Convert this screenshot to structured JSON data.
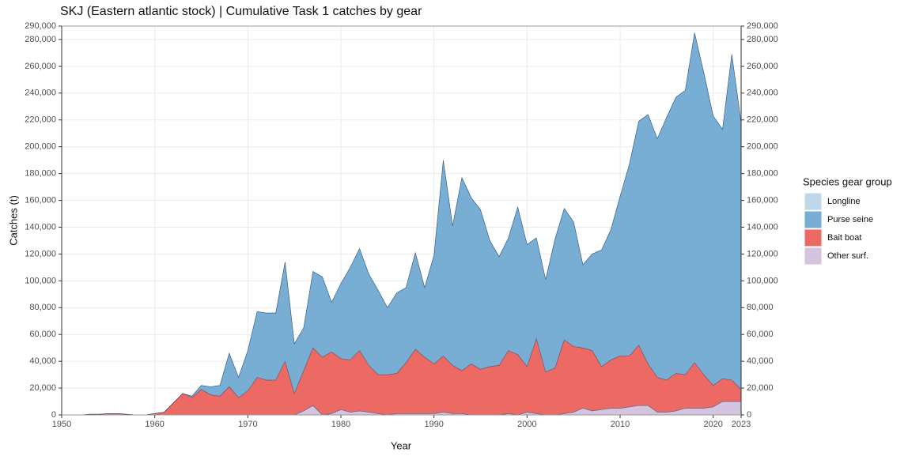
{
  "chart_data": {
    "type": "stacked_area",
    "title": "SKJ (Eastern atlantic stock) | Cumulative Task 1 catches by gear",
    "x_label": "Year",
    "y_label": "Catches (t)",
    "legend_title": "Species gear group",
    "x": [
      1950,
      1951,
      1952,
      1953,
      1954,
      1955,
      1956,
      1957,
      1958,
      1959,
      1960,
      1961,
      1962,
      1963,
      1964,
      1965,
      1966,
      1967,
      1968,
      1969,
      1970,
      1971,
      1972,
      1973,
      1974,
      1975,
      1976,
      1977,
      1978,
      1979,
      1980,
      1981,
      1982,
      1983,
      1984,
      1985,
      1986,
      1987,
      1988,
      1989,
      1990,
      1991,
      1992,
      1993,
      1994,
      1995,
      1996,
      1997,
      1998,
      1999,
      2000,
      2001,
      2002,
      2003,
      2004,
      2005,
      2006,
      2007,
      2008,
      2009,
      2010,
      2011,
      2012,
      2013,
      2014,
      2015,
      2016,
      2017,
      2018,
      2019,
      2020,
      2021,
      2022,
      2023
    ],
    "series": [
      {
        "name": "Longline",
        "color": "#bcd8ea",
        "values": [
          0,
          0,
          0,
          0,
          0,
          0,
          0,
          0,
          0,
          0,
          0,
          0,
          0,
          0,
          0,
          0,
          0,
          0,
          0,
          0,
          0,
          0,
          0,
          0,
          0,
          0,
          0,
          0,
          0,
          0,
          0,
          0,
          0,
          0,
          0,
          0,
          0,
          0,
          0,
          0,
          0,
          0,
          0,
          0,
          0,
          0,
          0,
          0,
          0,
          0,
          0,
          0,
          0,
          0,
          0,
          0,
          0,
          0,
          0,
          0,
          0,
          0,
          0,
          0,
          0,
          0,
          0,
          0,
          0,
          0,
          0,
          0,
          0,
          0
        ]
      },
      {
        "name": "Purse seine",
        "color": "#78aed3",
        "values": [
          0,
          0,
          0,
          0,
          0,
          0,
          0,
          0,
          0,
          0,
          0,
          0,
          0,
          0,
          1000,
          3000,
          6000,
          8000,
          25000,
          15000,
          30000,
          49000,
          50000,
          50000,
          74000,
          37000,
          32000,
          57000,
          60000,
          37000,
          56000,
          69000,
          76000,
          68000,
          63000,
          50000,
          60000,
          56000,
          72000,
          52000,
          81000,
          146000,
          104000,
          144000,
          124000,
          119000,
          94000,
          81000,
          84000,
          110000,
          91000,
          75000,
          69000,
          96000,
          98000,
          93000,
          62000,
          72000,
          87000,
          97000,
          119000,
          143000,
          167000,
          186000,
          178000,
          196000,
          206000,
          212000,
          246000,
          225000,
          201000,
          186000,
          243000,
          199000
        ]
      },
      {
        "name": "Bait boat",
        "color": "#ec6a63",
        "values": [
          0,
          0,
          0,
          500,
          500,
          1000,
          1000,
          500,
          0,
          0,
          1000,
          2000,
          9000,
          16000,
          13000,
          19000,
          15000,
          14000,
          21000,
          13000,
          18000,
          28000,
          26000,
          26000,
          40000,
          16000,
          30000,
          43000,
          43000,
          46000,
          38000,
          39000,
          45000,
          35000,
          29000,
          30000,
          30000,
          38000,
          48000,
          42000,
          37000,
          42000,
          36000,
          32000,
          38000,
          34000,
          36000,
          37000,
          47000,
          45000,
          34000,
          56000,
          32000,
          35000,
          55000,
          49000,
          45000,
          45000,
          32000,
          36000,
          39000,
          38000,
          45000,
          31000,
          26000,
          24000,
          28000,
          25000,
          34000,
          25000,
          16000,
          17000,
          16000,
          9000
        ]
      },
      {
        "name": "Other surf.",
        "color": "#d5c4df",
        "values": [
          0,
          0,
          0,
          0,
          0,
          0,
          0,
          0,
          0,
          0,
          0,
          0,
          0,
          0,
          0,
          0,
          0,
          0,
          0,
          0,
          0,
          0,
          0,
          0,
          0,
          0,
          3000,
          7000,
          0,
          1000,
          4000,
          2000,
          3000,
          2000,
          1000,
          0,
          1000,
          1000,
          1000,
          1000,
          1000,
          2000,
          1000,
          1000,
          0,
          0,
          0,
          0,
          1000,
          0,
          2000,
          1000,
          0,
          0,
          1000,
          2000,
          5000,
          3000,
          4000,
          5000,
          5000,
          6000,
          7000,
          7000,
          2000,
          2000,
          3000,
          5000,
          5000,
          5000,
          6000,
          10000,
          10000,
          10000
        ]
      }
    ],
    "xlim": [
      1950,
      2023
    ],
    "xticks": [
      1950,
      1960,
      1970,
      1980,
      1990,
      2000,
      2010,
      2020,
      2023
    ],
    "ylim": [
      0,
      290000
    ],
    "yticks": [
      0,
      {
        "value": 20000,
        "label": "20,000"
      },
      {
        "value": 40000,
        "label": "40,000"
      },
      {
        "value": 60000,
        "label": "60,000"
      },
      {
        "value": 80000,
        "label": "80,000"
      },
      {
        "value": 100000,
        "label": "100,000"
      },
      {
        "value": 120000,
        "label": "120,000"
      },
      {
        "value": 140000,
        "label": "140,000"
      },
      {
        "value": 160000,
        "label": "160,000"
      },
      {
        "value": 180000,
        "label": "180,000"
      },
      {
        "value": 200000,
        "label": "200,000"
      },
      {
        "value": 220000,
        "label": "220,000"
      },
      {
        "value": 240000,
        "label": "240,000"
      },
      {
        "value": 260000,
        "label": "260,000"
      },
      {
        "value": 280000,
        "label": "280,000"
      },
      {
        "value": 290000,
        "label": "290,000"
      }
    ],
    "y2lim": [
      0,
      290000
    ],
    "y2ticks": [
      0,
      {
        "value": 20000,
        "label": "20,000"
      },
      {
        "value": 40000,
        "label": "40,000"
      },
      {
        "value": 60000,
        "label": "60,000"
      },
      {
        "value": 80000,
        "label": "80,000"
      },
      {
        "value": 100000,
        "label": "100,000"
      },
      {
        "value": 120000,
        "label": "120,000"
      },
      {
        "value": 140000,
        "label": "140,000"
      },
      {
        "value": 160000,
        "label": "160,000"
      },
      {
        "value": 180000,
        "label": "180,000"
      },
      {
        "value": 200000,
        "label": "200,000"
      },
      {
        "value": 220000,
        "label": "220,000"
      },
      {
        "value": 240000,
        "label": "240,000"
      },
      {
        "value": 260000,
        "label": "260,000"
      },
      {
        "value": 280000,
        "label": "280,000"
      },
      {
        "value": 290000,
        "label": "290,000"
      }
    ],
    "grid": true,
    "legend": "right"
  }
}
